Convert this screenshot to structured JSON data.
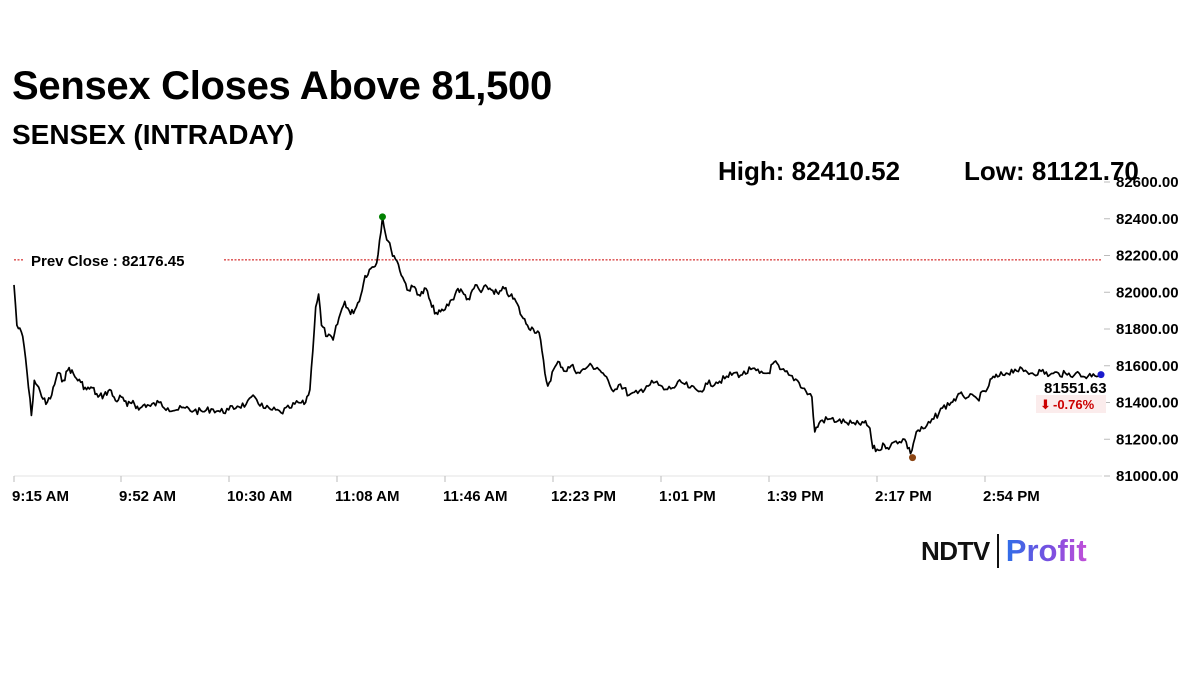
{
  "header": {
    "headline": "Sensex Closes Above 81,500",
    "subtitle": "SENSEX (INTRADAY)",
    "high_text": "High: 82410.52",
    "low_text": "Low: 81121.70"
  },
  "brand": {
    "ndtv": "NDTV",
    "profit": "Profit",
    "profit_color": "#4a63e6"
  },
  "chart_data": {
    "type": "line",
    "title": "SENSEX (INTRADAY)",
    "xlabel": "",
    "ylabel": "",
    "ylim": [
      81000,
      82600
    ],
    "y_ticks": [
      81000,
      81200,
      81400,
      81600,
      81800,
      82000,
      82200,
      82400,
      82600
    ],
    "y_tick_labels": [
      "81000.00",
      "81200.00",
      "81400.00",
      "81600.00",
      "81800.00",
      "82000.00",
      "82200.00",
      "82400.00",
      "82600.00"
    ],
    "x_tick_labels": [
      "9:15 AM",
      "9:52 AM",
      "10:30 AM",
      "11:08 AM",
      "11:46 AM",
      "12:23 PM",
      "1:01 PM",
      "1:39 PM",
      "2:17 PM",
      "2:54 PM"
    ],
    "x_start": "9:15 AM",
    "x_end": "3:30 PM",
    "prev_close": 82176.45,
    "prev_close_label": "Prev Close : 82176.45",
    "high": {
      "time": "11:22 AM",
      "value": 82410.52
    },
    "low": {
      "time": "2:24 PM",
      "value": 81121.7
    },
    "close": {
      "value": 81551.63,
      "value_label": "81551.63",
      "change_label": "-0.76%"
    },
    "line_color": "#000000",
    "prev_close_color": "#cc0000",
    "high_marker_color": "#008000",
    "low_marker_color": "#8b4513",
    "close_marker_color": "#1a1acc",
    "change_color": "#cc0000",
    "series": [
      {
        "points": [
          [
            "9:15 AM",
            82040
          ],
          [
            "9:16 AM",
            81820
          ],
          [
            "9:18 AM",
            81760
          ],
          [
            "9:19 AM",
            81640
          ],
          [
            "9:20 AM",
            81480
          ],
          [
            "9:21 AM",
            81330
          ],
          [
            "9:22 AM",
            81520
          ],
          [
            "9:24 AM",
            81460
          ],
          [
            "9:26 AM",
            81390
          ],
          [
            "9:28 AM",
            81440
          ],
          [
            "9:30 AM",
            81560
          ],
          [
            "9:32 AM",
            81520
          ],
          [
            "9:34 AM",
            81590
          ],
          [
            "9:36 AM",
            81540
          ],
          [
            "9:38 AM",
            81510
          ],
          [
            "9:40 AM",
            81470
          ],
          [
            "9:42 AM",
            81480
          ],
          [
            "9:44 AM",
            81430
          ],
          [
            "9:46 AM",
            81440
          ],
          [
            "9:48 AM",
            81470
          ],
          [
            "9:50 AM",
            81410
          ],
          [
            "9:52 AM",
            81430
          ],
          [
            "9:54 AM",
            81380
          ],
          [
            "9:56 AM",
            81410
          ],
          [
            "9:58 AM",
            81360
          ],
          [
            "10:00 AM",
            81390
          ],
          [
            "10:02 AM",
            81380
          ],
          [
            "10:05 AM",
            81400
          ],
          [
            "10:08 AM",
            81370
          ],
          [
            "10:11 AM",
            81360
          ],
          [
            "10:14 AM",
            81370
          ],
          [
            "10:17 AM",
            81355
          ],
          [
            "10:20 AM",
            81350
          ],
          [
            "10:23 AM",
            81365
          ],
          [
            "10:26 AM",
            81350
          ],
          [
            "10:29 AM",
            81360
          ],
          [
            "10:32 AM",
            81380
          ],
          [
            "10:35 AM",
            81390
          ],
          [
            "10:38 AM",
            81430
          ],
          [
            "10:41 AM",
            81370
          ],
          [
            "10:44 AM",
            81360
          ],
          [
            "10:47 AM",
            81345
          ],
          [
            "10:50 AM",
            81370
          ],
          [
            "10:53 AM",
            81400
          ],
          [
            "10:55 AM",
            81390
          ],
          [
            "10:57 AM",
            81470
          ],
          [
            "10:59 AM",
            81920
          ],
          [
            "11:00 AM",
            81990
          ],
          [
            "11:01 AM",
            81820
          ],
          [
            "11:03 AM",
            81760
          ],
          [
            "11:05 AM",
            81740
          ],
          [
            "11:07 AM",
            81860
          ],
          [
            "11:09 AM",
            81950
          ],
          [
            "11:11 AM",
            81880
          ],
          [
            "11:13 AM",
            81920
          ],
          [
            "11:15 AM",
            82010
          ],
          [
            "11:16 AM",
            82090
          ],
          [
            "11:18 AM",
            82130
          ],
          [
            "11:20 AM",
            82160
          ],
          [
            "11:22 AM",
            82410.52
          ],
          [
            "11:23 AM",
            82320
          ],
          [
            "11:25 AM",
            82230
          ],
          [
            "11:27 AM",
            82170
          ],
          [
            "11:29 AM",
            82080
          ],
          [
            "11:31 AM",
            82010
          ],
          [
            "11:33 AM",
            82030
          ],
          [
            "11:35 AM",
            81980
          ],
          [
            "11:37 AM",
            82020
          ],
          [
            "11:39 AM",
            81920
          ],
          [
            "11:41 AM",
            81880
          ],
          [
            "11:43 AM",
            81900
          ],
          [
            "11:46 AM",
            81960
          ],
          [
            "11:48 AM",
            82020
          ],
          [
            "11:50 AM",
            81990
          ],
          [
            "11:52 AM",
            81960
          ],
          [
            "11:54 AM",
            82040
          ],
          [
            "11:56 AM",
            82000
          ],
          [
            "11:58 AM",
            82030
          ],
          [
            "12:00 PM",
            82010
          ],
          [
            "12:02 PM",
            81990
          ],
          [
            "12:04 PM",
            82020
          ],
          [
            "12:06 PM",
            81980
          ],
          [
            "12:08 PM",
            81950
          ],
          [
            "12:10 PM",
            81870
          ],
          [
            "12:12 PM",
            81820
          ],
          [
            "12:14 PM",
            81800
          ],
          [
            "12:16 PM",
            81780
          ],
          [
            "12:18 PM",
            81560
          ],
          [
            "12:19 PM",
            81490
          ],
          [
            "12:21 PM",
            81580
          ],
          [
            "12:23 PM",
            81620
          ],
          [
            "12:25 PM",
            81570
          ],
          [
            "12:27 PM",
            81600
          ],
          [
            "12:30 PM",
            81560
          ],
          [
            "12:33 PM",
            81600
          ],
          [
            "12:36 PM",
            81590
          ],
          [
            "12:38 PM",
            81560
          ],
          [
            "12:41 PM",
            81470
          ],
          [
            "12:44 PM",
            81500
          ],
          [
            "12:47 PM",
            81440
          ],
          [
            "12:50 PM",
            81450
          ],
          [
            "12:53 PM",
            81490
          ],
          [
            "12:56 PM",
            81510
          ],
          [
            "12:59 PM",
            81470
          ],
          [
            "1:02 PM",
            81480
          ],
          [
            "1:05 PM",
            81510
          ],
          [
            "1:08 PM",
            81480
          ],
          [
            "1:11 PM",
            81460
          ],
          [
            "1:14 PM",
            81500
          ],
          [
            "1:17 PM",
            81510
          ],
          [
            "1:20 PM",
            81530
          ],
          [
            "1:23 PM",
            81560
          ],
          [
            "1:26 PM",
            81550
          ],
          [
            "1:29 PM",
            81580
          ],
          [
            "1:32 PM",
            81560
          ],
          [
            "1:35 PM",
            81560
          ],
          [
            "1:37 PM",
            81620
          ],
          [
            "1:39 PM",
            81580
          ],
          [
            "1:42 PM",
            81550
          ],
          [
            "1:45 PM",
            81520
          ],
          [
            "1:48 PM",
            81460
          ],
          [
            "1:50 PM",
            81430
          ],
          [
            "1:51 PM",
            81240
          ],
          [
            "1:53 PM",
            81300
          ],
          [
            "1:56 PM",
            81310
          ],
          [
            "1:59 PM",
            81300
          ],
          [
            "2:02 PM",
            81290
          ],
          [
            "2:05 PM",
            81280
          ],
          [
            "2:08 PM",
            81290
          ],
          [
            "2:10 PM",
            81260
          ],
          [
            "2:11 PM",
            81150
          ],
          [
            "2:13 PM",
            81140
          ],
          [
            "2:15 PM",
            81170
          ],
          [
            "2:17 PM",
            81160
          ],
          [
            "2:19 PM",
            81190
          ],
          [
            "2:22 PM",
            81200
          ],
          [
            "2:24 PM",
            81121.7
          ],
          [
            "2:26 PM",
            81240
          ],
          [
            "2:29 PM",
            81260
          ],
          [
            "2:32 PM",
            81310
          ],
          [
            "2:35 PM",
            81370
          ],
          [
            "2:38 PM",
            81400
          ],
          [
            "2:40 PM",
            81430
          ],
          [
            "2:42 PM",
            81440
          ],
          [
            "2:44 PM",
            81430
          ],
          [
            "2:47 PM",
            81420
          ],
          [
            "2:50 PM",
            81460
          ],
          [
            "2:52 PM",
            81530
          ],
          [
            "2:54 PM",
            81540
          ],
          [
            "2:57 PM",
            81560
          ],
          [
            "3:00 PM",
            81580
          ],
          [
            "3:03 PM",
            81570
          ],
          [
            "3:06 PM",
            81560
          ],
          [
            "3:09 PM",
            81570
          ],
          [
            "3:12 PM",
            81550
          ],
          [
            "3:15 PM",
            81560
          ],
          [
            "3:18 PM",
            81550
          ],
          [
            "3:21 PM",
            81560
          ],
          [
            "3:24 PM",
            81540
          ],
          [
            "3:27 PM",
            81555
          ],
          [
            "3:30 PM",
            81551.63
          ]
        ]
      }
    ]
  }
}
